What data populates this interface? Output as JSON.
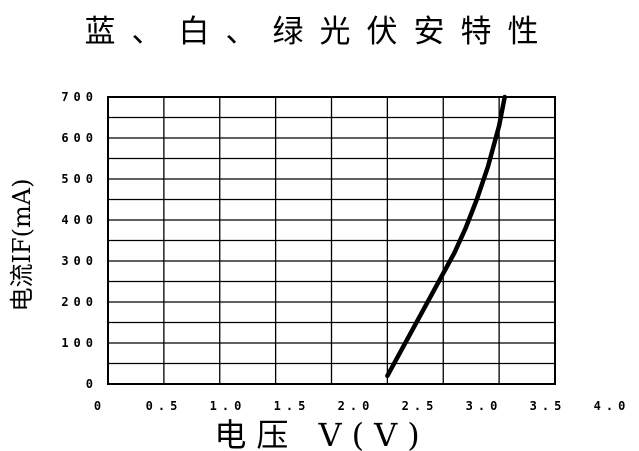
{
  "chart_data": {
    "type": "line",
    "title": "蓝、白、绿光伏安特性",
    "xlabel": "电压 V(V)",
    "ylabel": "电流IF(mA)",
    "xlim": [
      0,
      4.0
    ],
    "ylim": [
      0,
      700
    ],
    "x_ticks": [
      "0",
      "0.5",
      "1.0",
      "1.5",
      "2.0",
      "2.5",
      "3.0",
      "3.5",
      "4.0"
    ],
    "y_ticks": [
      "0",
      "100",
      "200",
      "300",
      "400",
      "500",
      "600",
      "700"
    ],
    "grid": true,
    "series": [
      {
        "x": [
          2.5,
          2.6,
          2.7,
          2.8,
          2.9,
          3.0,
          3.1,
          3.2,
          3.3,
          3.4,
          3.5,
          3.55
        ],
        "y": [
          20,
          70,
          120,
          170,
          220,
          270,
          320,
          380,
          450,
          530,
          630,
          700
        ]
      }
    ]
  }
}
